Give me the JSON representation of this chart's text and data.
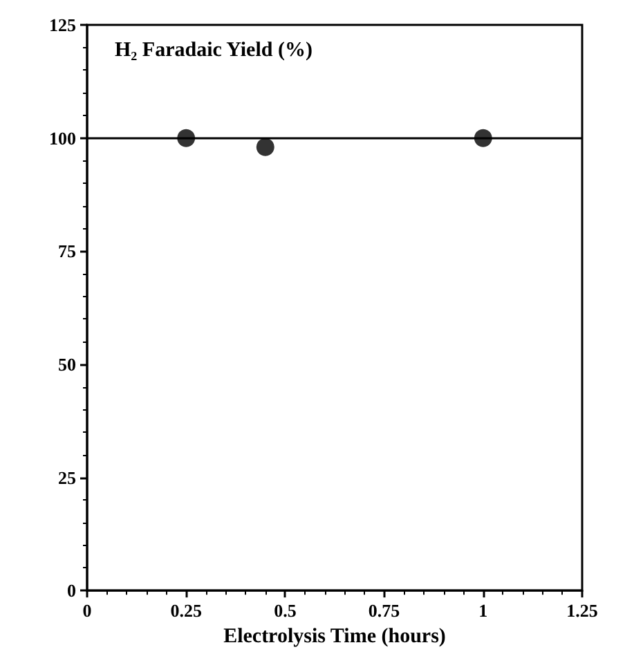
{
  "chart_data": {
    "type": "scatter",
    "title": "H₂ Faradaic Yield (%)",
    "xlabel": "Electrolysis Time (hours)",
    "x": [
      0.25,
      0.45,
      1
    ],
    "series": [
      {
        "color": "#000000",
        "values": [
          100,
          98,
          100
        ]
      }
    ],
    "xlim": [
      0,
      1.25
    ],
    "xticks": [
      0,
      0.25,
      0.5,
      0.75,
      1,
      1.25
    ],
    "ylim": [
      0,
      125
    ],
    "yticks": [
      0,
      25,
      50,
      75,
      100,
      125
    ],
    "ref_lines": [
      {
        "axis": "y",
        "value": 100,
        "color": "#000000",
        "line_style": "solid"
      }
    ],
    "marker": "circle",
    "grid": false
  }
}
